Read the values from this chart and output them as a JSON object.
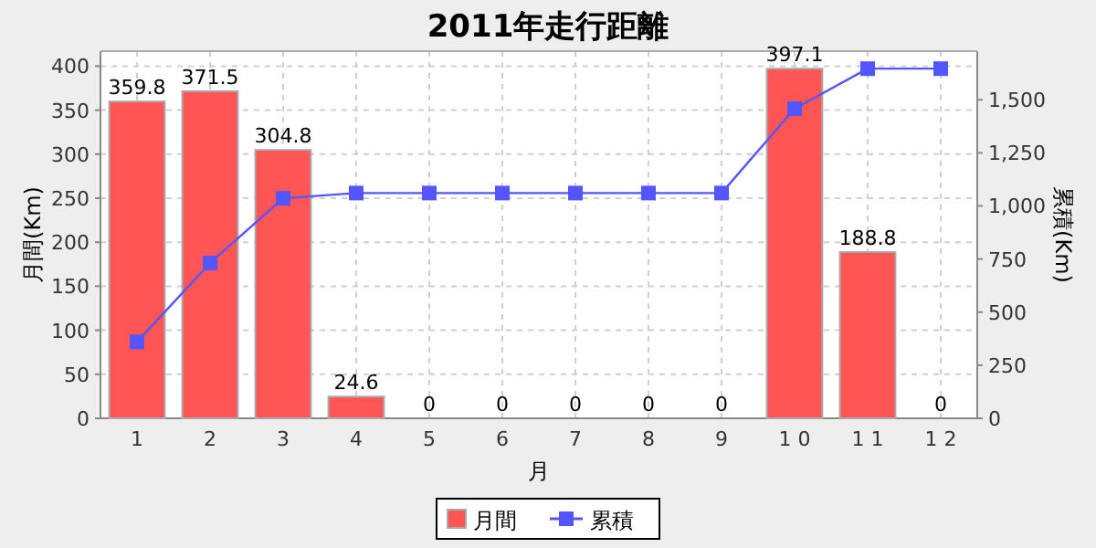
{
  "chart_data": {
    "type": "bar",
    "title": "2011年走行距離",
    "xlabel": "月",
    "ylabel": "月間(Km)",
    "y2label": "累積(Km)",
    "categories": [
      "1",
      "2",
      "3",
      "4",
      "5",
      "6",
      "7",
      "8",
      "9",
      "1 0",
      "1 1",
      "1 2"
    ],
    "series": [
      {
        "name": "月間",
        "color": "#ff5555",
        "values": [
          359.8,
          371.5,
          304.8,
          24.6,
          0,
          0,
          0,
          0,
          0,
          397.1,
          188.8,
          0
        ],
        "value_labels": [
          "359.8",
          "371.5",
          "304.8",
          "24.6",
          "0",
          "0",
          "0",
          "0",
          "0",
          "397.1",
          "188.8",
          "0"
        ]
      },
      {
        "name": "累積",
        "type": "line",
        "axis": "y2",
        "color": "#5555ff",
        "marker": "square",
        "values": [
          359.8,
          731.3,
          1036.1,
          1060.7,
          1060.7,
          1060.7,
          1060.7,
          1060.7,
          1060.7,
          1457.8,
          1646.6,
          1646.6
        ]
      }
    ],
    "ylim": [
      0,
      417
    ],
    "yticks": [
      0,
      50,
      100,
      150,
      200,
      250,
      300,
      350,
      400
    ],
    "y2lim": [
      0,
      1729
    ],
    "y2ticks": [
      0,
      {
        "value": 250,
        "label": "250"
      },
      {
        "value": 500,
        "label": "500"
      },
      {
        "value": 750,
        "label": "750"
      },
      {
        "value": 1000,
        "label": "1,000"
      },
      {
        "value": 1250,
        "label": "1,250"
      },
      {
        "value": 1500,
        "label": "1,500"
      }
    ],
    "grid": true,
    "legend": "bottom"
  }
}
